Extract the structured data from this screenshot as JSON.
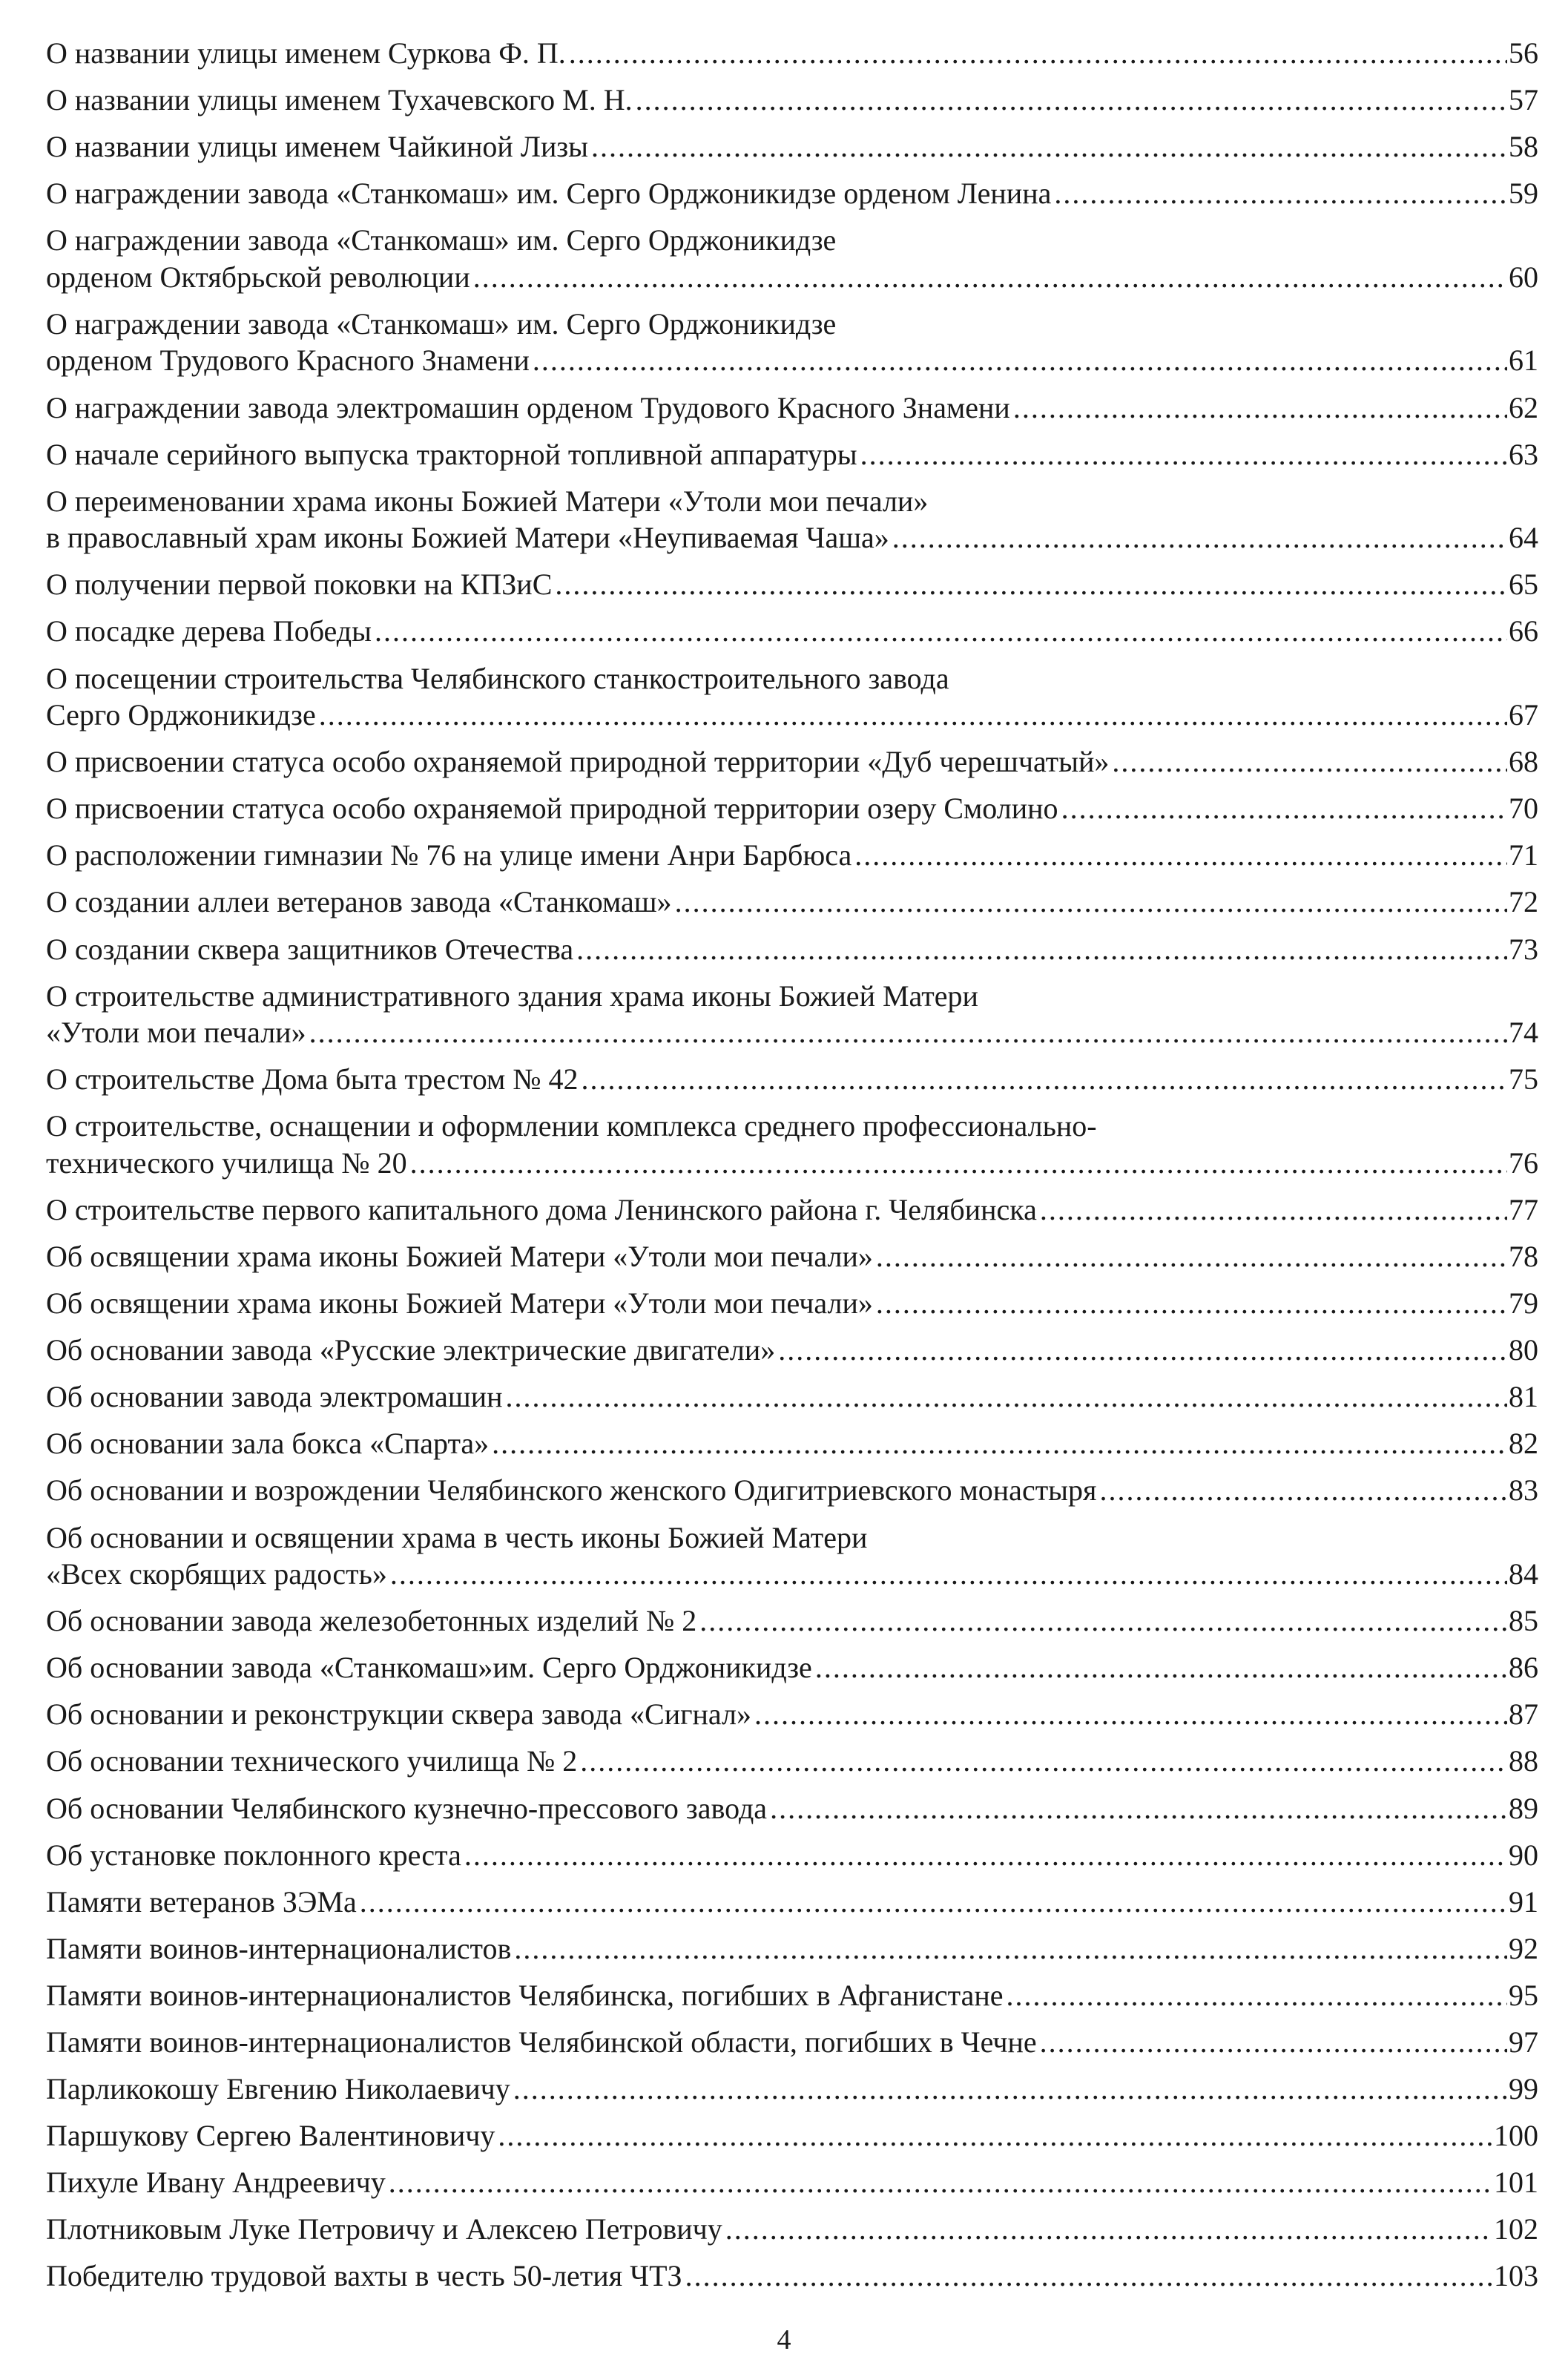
{
  "entries": [
    {
      "lines": [
        "О названии улицы именем Суркова Ф. П."
      ],
      "page": "56"
    },
    {
      "lines": [
        "О названии улицы именем Тухачевского М. Н."
      ],
      "page": "57"
    },
    {
      "lines": [
        "О названии улицы именем Чайкиной Лизы"
      ],
      "page": "58"
    },
    {
      "lines": [
        "О награждении завода «Станкомаш» им. Серго Орджоникидзе орденом Ленина"
      ],
      "page": "59"
    },
    {
      "lines": [
        "О награждении завода «Станкомаш» им. Серго Орджоникидзе",
        "орденом Октябрьской революции"
      ],
      "page": "60"
    },
    {
      "lines": [
        "О награждении завода «Станкомаш» им. Серго Орджоникидзе",
        "орденом Трудового Красного Знамени"
      ],
      "page": "61"
    },
    {
      "lines": [
        "О награждении завода электромашин орденом Трудового Красного Знамени"
      ],
      "page": "62"
    },
    {
      "lines": [
        "О начале серийного выпуска тракторной топливной аппаратуры"
      ],
      "page": "63"
    },
    {
      "lines": [
        "О переименовании храма иконы Божией Матери «Утоли мои печали»",
        "в православный храм иконы Божией Матери «Неупиваемая Чаша»"
      ],
      "page": "64"
    },
    {
      "lines": [
        "О получении первой поковки на КПЗиС"
      ],
      "page": "65"
    },
    {
      "lines": [
        "О посадке дерева Победы"
      ],
      "page": "66"
    },
    {
      "lines": [
        "О посещении строительства Челябинского станкостроительного завода",
        "Серго Орджоникидзе"
      ],
      "page": "67"
    },
    {
      "lines": [
        "О присвоении статуса особо охраняемой природной территории «Дуб черешчатый»"
      ],
      "page": "68"
    },
    {
      "lines": [
        "О присвоении статуса особо охраняемой природной территории озеру Смолино"
      ],
      "page": "70"
    },
    {
      "lines": [
        "О расположении гимназии № 76 на улице имени Анри Барбюса"
      ],
      "page": "71"
    },
    {
      "lines": [
        "О создании аллеи ветеранов завода «Станкомаш»"
      ],
      "page": "72"
    },
    {
      "lines": [
        "О создании сквера защитников Отечества"
      ],
      "page": "73"
    },
    {
      "lines": [
        "О строительстве административного здания храма иконы Божией Матери",
        "«Утоли мои печали»"
      ],
      "page": "74"
    },
    {
      "lines": [
        "О строительстве Дома быта трестом № 42"
      ],
      "page": "75"
    },
    {
      "lines": [
        "О строительстве, оснащении и оформлении комплекса среднего профессионально-",
        "технического училища № 20"
      ],
      "page": "76"
    },
    {
      "lines": [
        "О строительстве первого капитального дома Ленинского района г. Челябинска"
      ],
      "page": "77"
    },
    {
      "lines": [
        "Об освящении храма иконы Божией Матери «Утоли мои печали»"
      ],
      "page": "78"
    },
    {
      "lines": [
        "Об освящении храма иконы Божией Матери «Утоли мои печали»"
      ],
      "page": "79"
    },
    {
      "lines": [
        "Об основании завода «Русские электрические двигатели»"
      ],
      "page": "80"
    },
    {
      "lines": [
        "Об основании завода электромашин"
      ],
      "page": "81"
    },
    {
      "lines": [
        "Об основании зала бокса «Спарта»"
      ],
      "page": "82"
    },
    {
      "lines": [
        "Об основании и возрождении Челябинского женского Одигитриевского монастыря"
      ],
      "page": "83"
    },
    {
      "lines": [
        "Об основании и освящении храма в честь иконы Божией Матери",
        "«Всех скорбящих радость»"
      ],
      "page": "84"
    },
    {
      "lines": [
        "Об основании завода железобетонных изделий № 2"
      ],
      "page": "85"
    },
    {
      "lines": [
        "Об основании завода «Станкомаш»им. Серго Орджоникидзе"
      ],
      "page": "86"
    },
    {
      "lines": [
        "Об основании и реконструкции сквера завода «Сигнал»"
      ],
      "page": "87"
    },
    {
      "lines": [
        "Об основании технического училища № 2"
      ],
      "page": "88"
    },
    {
      "lines": [
        "Об основании Челябинского кузнечно-прессового завода"
      ],
      "page": "89"
    },
    {
      "lines": [
        "Об установке поклонного креста"
      ],
      "page": "90"
    },
    {
      "lines": [
        "Памяти ветеранов ЗЭМа"
      ],
      "page": "91"
    },
    {
      "lines": [
        "Памяти воинов-интернационалистов"
      ],
      "page": "92"
    },
    {
      "lines": [
        "Памяти воинов-интернационалистов Челябинска, погибших в Афганистане"
      ],
      "page": "95"
    },
    {
      "lines": [
        "Памяти воинов-интернационалистов Челябинской области, погибших в Чечне"
      ],
      "page": "97"
    },
    {
      "lines": [
        "Парликокошу Евгению Николаевичу"
      ],
      "page": "99"
    },
    {
      "lines": [
        "Паршукову Сергею Валентиновичу"
      ],
      "page": "100"
    },
    {
      "lines": [
        "Пихуле Ивану Андреевичу"
      ],
      "page": "101"
    },
    {
      "lines": [
        "Плотниковым Луке Петровичу и Алексею Петровичу"
      ],
      "page": "102"
    },
    {
      "lines": [
        "Победителю трудовой вахты в честь 50-летия ЧТЗ"
      ],
      "page": "103"
    }
  ],
  "page_number": "4"
}
